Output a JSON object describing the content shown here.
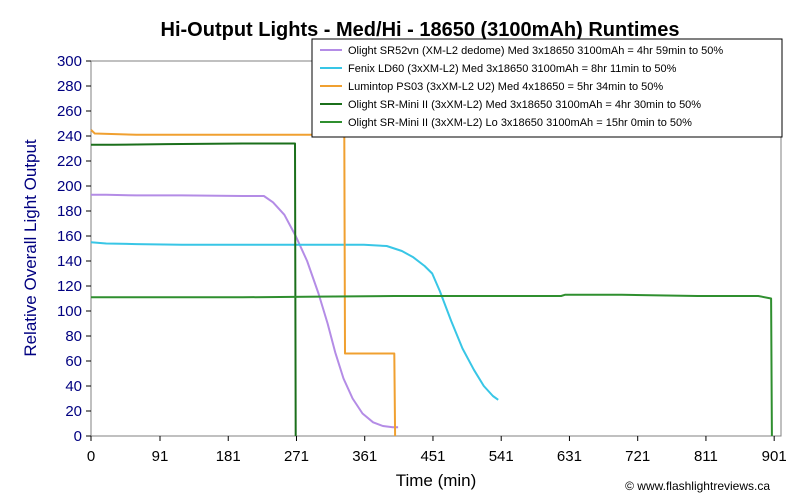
{
  "chart_data": {
    "type": "line",
    "title": "Hi-Output Lights - Med/Hi - 18650 (3100mAh) Runtimes",
    "xlabel": "Time (min)",
    "ylabel": "Relative Overall Light Output",
    "xlim": [
      0,
      910
    ],
    "ylim": [
      0,
      300
    ],
    "xticks": [
      0,
      91,
      181,
      271,
      361,
      451,
      541,
      631,
      721,
      811,
      901
    ],
    "yticks": [
      0,
      20,
      40,
      60,
      80,
      100,
      120,
      140,
      160,
      180,
      200,
      220,
      240,
      260,
      280,
      300
    ],
    "grid": false,
    "legend_position": "top-right",
    "credit": "© www.flashlightreviews.ca",
    "series": [
      {
        "name": "Olight SR52vn (XM-L2 dedome) Med 3x18650 3100mAh = 4hr 59min to 50%",
        "color": "#b48ce6",
        "points": [
          [
            0,
            193
          ],
          [
            20,
            193
          ],
          [
            60,
            192.5
          ],
          [
            120,
            192.5
          ],
          [
            200,
            192
          ],
          [
            228,
            192
          ],
          [
            240,
            187
          ],
          [
            255,
            177
          ],
          [
            270,
            160
          ],
          [
            285,
            140
          ],
          [
            300,
            114
          ],
          [
            312,
            90
          ],
          [
            322,
            67
          ],
          [
            333,
            46
          ],
          [
            345,
            30
          ],
          [
            358,
            18
          ],
          [
            372,
            11
          ],
          [
            385,
            8
          ],
          [
            398,
            7
          ],
          [
            405,
            7
          ]
        ]
      },
      {
        "name": "Fenix LD60 (3xXM-L2) Med 3x18650 3100mAh = 8hr 11min to 50%",
        "color": "#38c6e6",
        "points": [
          [
            0,
            155
          ],
          [
            20,
            154
          ],
          [
            60,
            153.5
          ],
          [
            120,
            153
          ],
          [
            200,
            153
          ],
          [
            300,
            153
          ],
          [
            360,
            153
          ],
          [
            390,
            152
          ],
          [
            410,
            148
          ],
          [
            425,
            143
          ],
          [
            440,
            136
          ],
          [
            450,
            130
          ],
          [
            460,
            116
          ],
          [
            475,
            92
          ],
          [
            490,
            70
          ],
          [
            505,
            53
          ],
          [
            518,
            40
          ],
          [
            530,
            32
          ],
          [
            537,
            29
          ]
        ]
      },
      {
        "name": "Lumintop PS03 (3xXM-L2 U2) Med 4x18650 = 5hr 34min to 50%",
        "color": "#f0a030",
        "points": [
          [
            0,
            245
          ],
          [
            5,
            242
          ],
          [
            60,
            241
          ],
          [
            120,
            241
          ],
          [
            200,
            241
          ],
          [
            300,
            241
          ],
          [
            334,
            241
          ],
          [
            335,
            66
          ],
          [
            400,
            66
          ],
          [
            401,
            0
          ]
        ]
      },
      {
        "name": "Olight SR-Mini II (3xXM-L2) Med 3x18650 3100mAh = 4hr 30min to 50%",
        "color": "#1b6f1b",
        "points": [
          [
            0,
            233
          ],
          [
            30,
            233
          ],
          [
            100,
            233.5
          ],
          [
            200,
            234
          ],
          [
            269,
            234
          ],
          [
            270,
            0
          ]
        ]
      },
      {
        "name": "Olight SR-Mini II (3xXM-L2) Lo 3x18650 3100mAh = 15hr 0min to 50%",
        "color": "#2f8f2f",
        "points": [
          [
            0,
            111
          ],
          [
            100,
            111
          ],
          [
            200,
            111
          ],
          [
            300,
            111.5
          ],
          [
            400,
            112
          ],
          [
            500,
            112
          ],
          [
            620,
            112
          ],
          [
            625,
            113
          ],
          [
            700,
            113
          ],
          [
            800,
            112
          ],
          [
            880,
            112
          ],
          [
            897,
            110
          ],
          [
            898,
            0
          ]
        ]
      }
    ]
  }
}
